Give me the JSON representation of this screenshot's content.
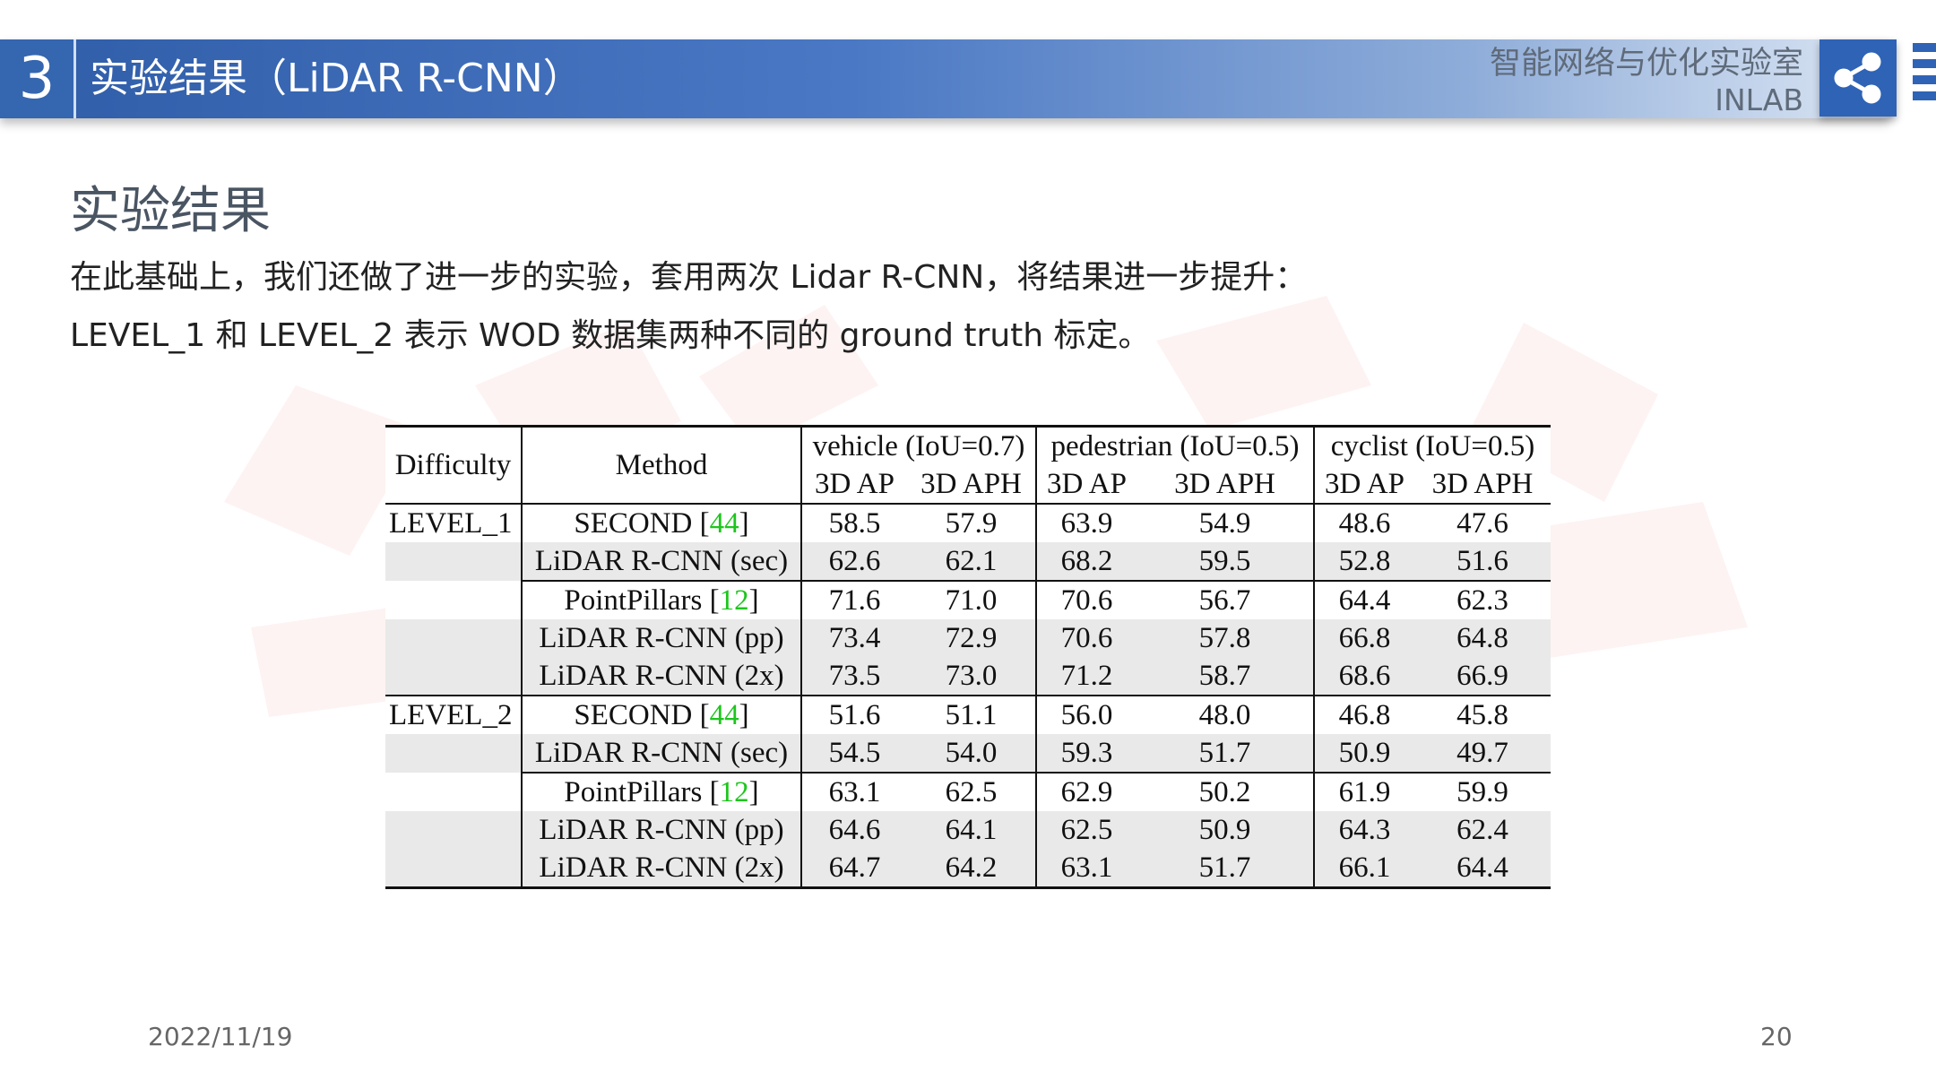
{
  "header": {
    "section_number": "3",
    "title": "实验结果（LiDAR R-CNN）",
    "lab_name_cn": "智能网络与优化实验室",
    "lab_name_en": "INLAB"
  },
  "page": {
    "heading": "实验结果",
    "desc_line1": "在此基础上，我们还做了进一步的实验，套用两次 Lidar R-CNN，将结果进一步提升：",
    "desc_line2": "LEVEL_1 和 LEVEL_2 表示 WOD 数据集两种不同的 ground truth 标定。"
  },
  "table": {
    "headers": {
      "difficulty": "Difficulty",
      "method": "Method",
      "vehicle": "vehicle (IoU=0.7)",
      "pedestrian": "pedestrian (IoU=0.5)",
      "cyclist": "cyclist (IoU=0.5)",
      "ap": "3D AP",
      "aph": "3D APH"
    },
    "rows": [
      {
        "level": "LEVEL_1",
        "method": "SECOND [",
        "ref": "44",
        "close": "]",
        "values": [
          "58.5",
          "57.9",
          "63.9",
          "54.9",
          "48.6",
          "47.6"
        ]
      },
      {
        "level": "",
        "method": "LiDAR R-CNN (sec)",
        "ref": "",
        "close": "",
        "values": [
          "62.6",
          "62.1",
          "68.2",
          "59.5",
          "52.8",
          "51.6"
        ]
      },
      {
        "level": "",
        "method": "PointPillars [",
        "ref": "12",
        "close": "]",
        "values": [
          "71.6",
          "71.0",
          "70.6",
          "56.7",
          "64.4",
          "62.3"
        ]
      },
      {
        "level": "",
        "method": "LiDAR R-CNN (pp)",
        "ref": "",
        "close": "",
        "values": [
          "73.4",
          "72.9",
          "70.6",
          "57.8",
          "66.8",
          "64.8"
        ]
      },
      {
        "level": "",
        "method": "LiDAR R-CNN (2x)",
        "ref": "",
        "close": "",
        "values": [
          "73.5",
          "73.0",
          "71.2",
          "58.7",
          "68.6",
          "66.9"
        ]
      },
      {
        "level": "LEVEL_2",
        "method": "SECOND [",
        "ref": "44",
        "close": "]",
        "values": [
          "51.6",
          "51.1",
          "56.0",
          "48.0",
          "46.8",
          "45.8"
        ]
      },
      {
        "level": "",
        "method": "LiDAR R-CNN (sec)",
        "ref": "",
        "close": "",
        "values": [
          "54.5",
          "54.0",
          "59.3",
          "51.7",
          "50.9",
          "49.7"
        ]
      },
      {
        "level": "",
        "method": "PointPillars [",
        "ref": "12",
        "close": "]",
        "values": [
          "63.1",
          "62.5",
          "62.9",
          "50.2",
          "61.9",
          "59.9"
        ]
      },
      {
        "level": "",
        "method": "LiDAR R-CNN (pp)",
        "ref": "",
        "close": "",
        "values": [
          "64.6",
          "64.1",
          "62.5",
          "50.9",
          "64.3",
          "62.4"
        ]
      },
      {
        "level": "",
        "method": "LiDAR R-CNN (2x)",
        "ref": "",
        "close": "",
        "values": [
          "64.7",
          "64.2",
          "63.1",
          "51.7",
          "66.1",
          "64.4"
        ]
      }
    ]
  },
  "footer": {
    "date": "2022/11/19",
    "page_number": "20"
  },
  "colors": {
    "header_blue": "#2f5da8",
    "reference_green": "#1ec51e",
    "shaded_row": "#e9e9e9"
  },
  "icons": {
    "share": "share-icon"
  }
}
